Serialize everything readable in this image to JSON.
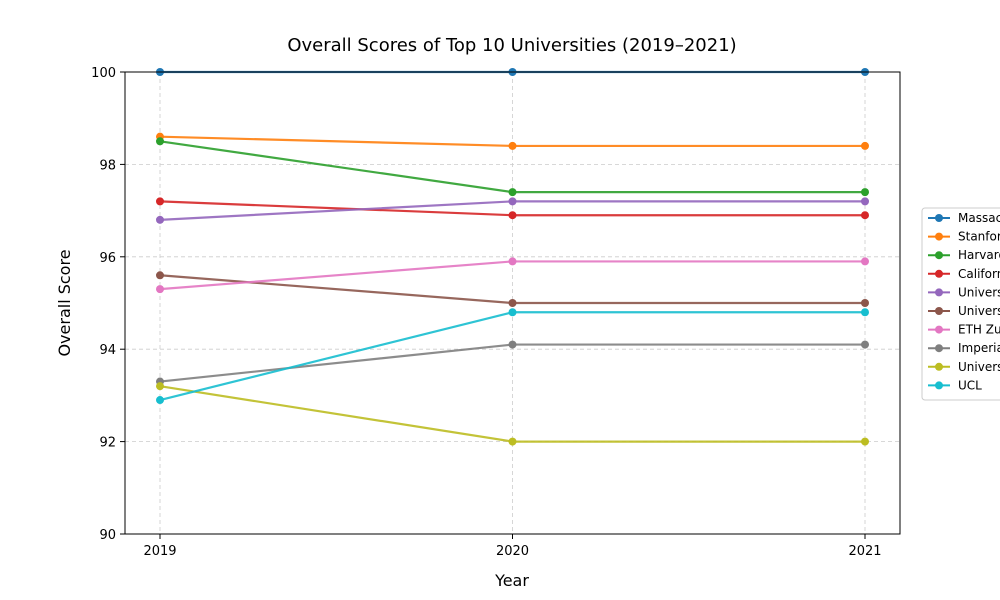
{
  "chart_data": {
    "type": "line",
    "title": "Overall Scores of Top 10 Universities (2019–2021)",
    "xlabel": "Year",
    "ylabel": "Overall Score",
    "x": [
      "2019",
      "2020",
      "2021"
    ],
    "ylim": [
      90,
      100
    ],
    "yticks": [
      "90",
      "92",
      "94",
      "96",
      "98",
      "100"
    ],
    "grid": true,
    "legend_position": "right",
    "series": [
      {
        "name": "Massac",
        "color": "#1f77b4",
        "values": [
          100,
          100,
          100
        ]
      },
      {
        "name": "Stanfor",
        "color": "#ff7f0e",
        "values": [
          98.6,
          98.4,
          98.4
        ]
      },
      {
        "name": "Harvard",
        "color": "#2ca02c",
        "values": [
          98.5,
          97.4,
          97.4
        ]
      },
      {
        "name": "Californ",
        "color": "#d62728",
        "values": [
          97.2,
          96.9,
          96.9
        ]
      },
      {
        "name": "Univers",
        "color": "#9467bd",
        "values": [
          96.8,
          97.2,
          97.2
        ]
      },
      {
        "name": "Univers",
        "color": "#8c564b",
        "values": [
          95.6,
          95.0,
          95.0
        ]
      },
      {
        "name": "ETH Zu",
        "color": "#e377c2",
        "values": [
          95.3,
          95.9,
          95.9
        ]
      },
      {
        "name": "Imperia",
        "color": "#7f7f7f",
        "values": [
          93.3,
          94.1,
          94.1
        ]
      },
      {
        "name": "Univers",
        "color": "#bcbd22",
        "values": [
          93.2,
          92.0,
          92.0
        ]
      },
      {
        "name": "UCL",
        "color": "#17becf",
        "values": [
          92.9,
          94.8,
          94.8
        ]
      }
    ]
  }
}
